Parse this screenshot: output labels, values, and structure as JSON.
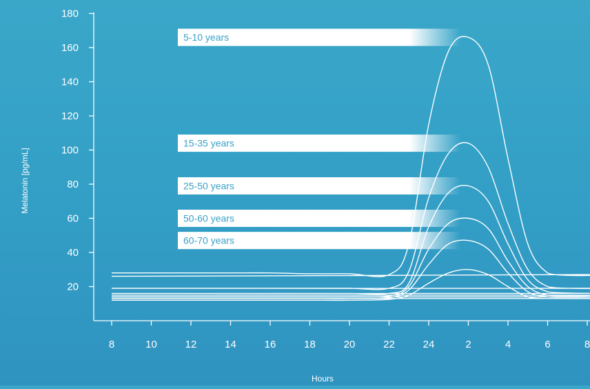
{
  "chart_data": {
    "type": "line",
    "title": "",
    "xlabel": "Hours",
    "ylabel": "Melatonin [pg/mL]",
    "x_ticks": [
      "8",
      "10",
      "12",
      "14",
      "16",
      "18",
      "20",
      "22",
      "24",
      "2",
      "4",
      "6",
      "8"
    ],
    "y_ticks": [
      "20",
      "40",
      "60",
      "80",
      "100",
      "120",
      "140",
      "160",
      "180"
    ],
    "ylim": [
      0,
      180
    ],
    "grid": false,
    "legend": "inline-labels",
    "x": [
      "8",
      "10",
      "12",
      "14",
      "16",
      "18",
      "20",
      "22",
      "23",
      "24",
      "1",
      "2",
      "3",
      "4",
      "5",
      "6",
      "7",
      "8"
    ],
    "series": [
      {
        "name": "5-10 years",
        "values": [
          28,
          28,
          28,
          28,
          28,
          27.5,
          27.5,
          27,
          45,
          115,
          158,
          166,
          150,
          95,
          45,
          28,
          27,
          26
        ]
      },
      {
        "name": "15-35 years",
        "values": [
          19,
          19,
          19,
          19,
          19,
          19,
          19,
          19,
          29,
          72,
          98,
          104,
          90,
          57,
          30,
          20,
          19,
          19
        ]
      },
      {
        "name": "25-50 years",
        "values": [
          16,
          16,
          16,
          16,
          16,
          16,
          16,
          16,
          22,
          55,
          75,
          79,
          70,
          45,
          24,
          17,
          16,
          16
        ]
      },
      {
        "name": "50-60 years",
        "values": [
          14,
          14,
          14,
          14,
          14,
          14,
          14,
          14.5,
          20,
          42,
          57,
          60,
          54,
          35,
          20,
          15,
          15,
          15
        ]
      },
      {
        "name": "60-70 years",
        "values": [
          13,
          13,
          13,
          13,
          13,
          13,
          13,
          13.5,
          18,
          33,
          45,
          47,
          42,
          28,
          17,
          14,
          14,
          14
        ]
      },
      {
        "name": "",
        "values": [
          12,
          12,
          12,
          12,
          12,
          12,
          12,
          12.5,
          15,
          22,
          28,
          30,
          27,
          20,
          14,
          13,
          13,
          13
        ]
      }
    ]
  },
  "colors": {
    "background_top": "#3aa7c9",
    "background_bottom": "#2f93c0",
    "line": "#ffffff",
    "label_text": "#3aa2c8"
  }
}
